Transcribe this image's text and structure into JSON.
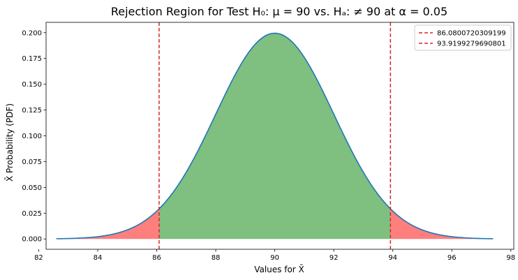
{
  "chart_data": {
    "type": "line",
    "title": "Rejection Region for Test H₀: μ = 90 vs. Hₐ: ≠ 90 at α = 0.05",
    "xlabel": "Values for X̄",
    "ylabel": "X̄ Probability (PDF)",
    "xlim": [
      82.25,
      98.1
    ],
    "ylim": [
      -0.01,
      0.21
    ],
    "x_ticks": [
      82,
      84,
      86,
      88,
      90,
      92,
      94,
      96,
      98
    ],
    "y_ticks": [
      0.0,
      0.025,
      0.05,
      0.075,
      0.1,
      0.125,
      0.15,
      0.175,
      0.2
    ],
    "x_tick_labels": [
      "82",
      "84",
      "86",
      "88",
      "90",
      "92",
      "94",
      "96",
      "98"
    ],
    "y_tick_labels": [
      "0.000",
      "0.025",
      "0.050",
      "0.075",
      "0.100",
      "0.125",
      "0.150",
      "0.175",
      "0.200"
    ],
    "grid": false,
    "legend_position": "top-right",
    "distribution": {
      "mean": 90,
      "std": 2.0,
      "x_min": 82.6,
      "x_max": 97.4
    },
    "series": [
      {
        "name": "",
        "kind": "pdf-curve",
        "color": "#1f77b4"
      }
    ],
    "shaded_regions": [
      {
        "kind": "rejection-left",
        "from": 82.6,
        "to": 86.0800720309199,
        "color": "#ff0000",
        "opacity": 0.5
      },
      {
        "kind": "acceptance",
        "from": 86.0800720309199,
        "to": 93.9199279690801,
        "color": "#008000",
        "opacity": 0.5
      },
      {
        "kind": "rejection-right",
        "from": 93.9199279690801,
        "to": 97.4,
        "color": "#ff0000",
        "opacity": 0.5
      }
    ],
    "vertical_lines": [
      {
        "name": "86.0800720309199",
        "x": 86.0800720309199,
        "color": "#d62728",
        "style": "dashed"
      },
      {
        "name": "93.9199279690801",
        "x": 93.9199279690801,
        "color": "#d62728",
        "style": "dashed"
      }
    ],
    "legend": [
      "86.0800720309199",
      "93.9199279690801"
    ]
  }
}
